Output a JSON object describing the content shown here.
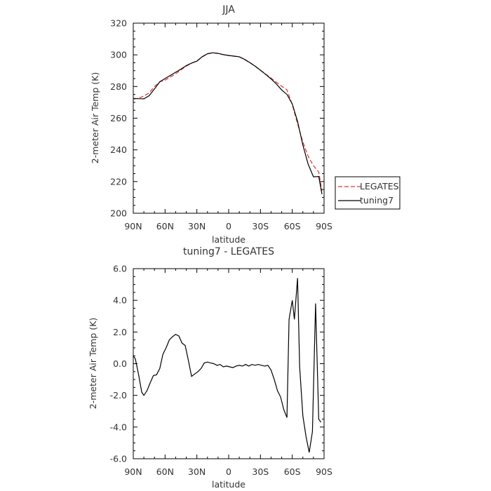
{
  "chart_data": [
    {
      "type": "line",
      "title": "JJA",
      "xlabel": "latitude",
      "ylabel": "2-meter Air Temp (K)",
      "xlim": [
        -90,
        90
      ],
      "ylim": [
        200,
        320
      ],
      "x_ticks": [
        -90,
        -60,
        -30,
        0,
        30,
        60,
        90
      ],
      "x_tick_labels": [
        "90N",
        "60N",
        "30N",
        "0",
        "30S",
        "60S",
        "90S"
      ],
      "y_ticks": [
        200,
        220,
        240,
        260,
        280,
        300,
        320
      ],
      "y_tick_labels": [
        "200",
        "220",
        "240",
        "260",
        "280",
        "300",
        "320"
      ],
      "legend_position": "right",
      "series": [
        {
          "name": "LEGATES",
          "color": "#e03030",
          "dash": "dashed",
          "x": [
            -90,
            -85,
            -80,
            -75,
            -70,
            -65,
            -60,
            -55,
            -50,
            -45,
            -40,
            -35,
            -30,
            -25,
            -20,
            -15,
            -10,
            -5,
            0,
            5,
            10,
            15,
            20,
            25,
            30,
            35,
            40,
            45,
            50,
            55,
            60,
            65,
            70,
            75,
            80,
            85,
            88
          ],
          "y": [
            272,
            272.6,
            274,
            276,
            280,
            283,
            284,
            286,
            288,
            290.5,
            292.8,
            294.7,
            296.2,
            298.6,
            300.6,
            301.3,
            300.8,
            300.2,
            299.6,
            299.1,
            298.7,
            297.0,
            295.0,
            292.8,
            290.3,
            287.8,
            285.3,
            282.7,
            280.2,
            277.9,
            268.5,
            256.5,
            245,
            236,
            230,
            226,
            214
          ]
        },
        {
          "name": "tuning7",
          "color": "#000000",
          "dash": "solid",
          "x": [
            -90,
            -85,
            -80,
            -75,
            -70,
            -65,
            -60,
            -55,
            -50,
            -45,
            -40,
            -35,
            -30,
            -25,
            -20,
            -15,
            -10,
            -5,
            0,
            5,
            10,
            15,
            20,
            25,
            30,
            35,
            40,
            45,
            50,
            55,
            60,
            65,
            70,
            75,
            80,
            85,
            88
          ],
          "y": [
            272.5,
            272.3,
            272.2,
            274.2,
            278.5,
            283,
            285,
            287,
            289,
            291,
            293.2,
            294.8,
            296.0,
            298.8,
            300.7,
            301.3,
            300.9,
            300.1,
            299.6,
            299.2,
            298.8,
            297.1,
            295.1,
            292.8,
            290.3,
            287.6,
            284.8,
            281.6,
            277.8,
            275,
            269,
            258,
            243,
            231,
            223,
            223.2,
            212
          ]
        }
      ]
    },
    {
      "type": "line",
      "title": "tuning7 - LEGATES",
      "xlabel": "latitude",
      "ylabel": "2-meter Air Temp (K)",
      "xlim": [
        -90,
        90
      ],
      "ylim": [
        -6,
        6
      ],
      "x_ticks": [
        -90,
        -60,
        -30,
        0,
        30,
        60,
        90
      ],
      "x_tick_labels": [
        "90N",
        "60N",
        "30N",
        "0",
        "30S",
        "60S",
        "90S"
      ],
      "y_ticks": [
        -6,
        -4,
        -2,
        0,
        2,
        4,
        6
      ],
      "y_tick_labels": [
        "-6.0",
        "-4.0",
        "-2.0",
        "0.0",
        "2.0",
        "4.0",
        "6.0"
      ],
      "series": [
        {
          "name": "",
          "color": "#000000",
          "dash": "solid",
          "x": [
            -90,
            -88,
            -85,
            -82,
            -80,
            -77,
            -74,
            -71,
            -68,
            -65,
            -62,
            -59,
            -56,
            -53,
            -50,
            -47,
            -44,
            -41,
            -38,
            -35,
            -32,
            -29,
            -26,
            -23,
            -20,
            -17,
            -14,
            -11,
            -8,
            -5,
            -2,
            1,
            4,
            7,
            10,
            13,
            16,
            19,
            22,
            25,
            28,
            31,
            34,
            37,
            40,
            43,
            46,
            49,
            52,
            55,
            57,
            60,
            62,
            65,
            67,
            70,
            73,
            76,
            79,
            82,
            85,
            87
          ],
          "y": [
            0.5,
            0.3,
            -0.7,
            -1.8,
            -2.0,
            -1.7,
            -1.2,
            -0.75,
            -0.7,
            -0.3,
            0.6,
            1.0,
            1.5,
            1.7,
            1.85,
            1.75,
            1.3,
            1.15,
            0.2,
            -0.8,
            -0.65,
            -0.5,
            -0.3,
            0.05,
            0.1,
            0.05,
            0.0,
            -0.1,
            -0.05,
            -0.2,
            -0.15,
            -0.2,
            -0.25,
            -0.15,
            -0.1,
            -0.15,
            -0.05,
            -0.15,
            -0.05,
            -0.1,
            -0.05,
            -0.1,
            -0.15,
            -0.1,
            -0.4,
            -1.0,
            -1.7,
            -2.1,
            -2.9,
            -3.4,
            2.8,
            4.0,
            2.8,
            5.4,
            -0.2,
            -3.3,
            -4.6,
            -5.6,
            -4.3,
            3.8,
            -3.5,
            -3.7
          ]
        }
      ]
    }
  ]
}
